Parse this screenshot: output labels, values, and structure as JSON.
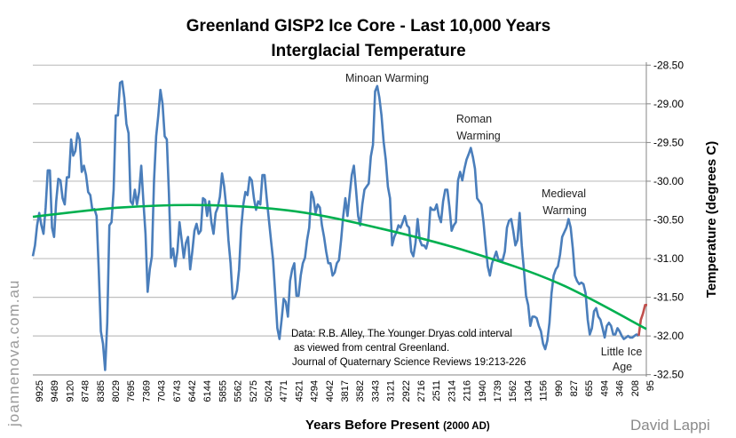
{
  "chart_data": {
    "type": "line",
    "title": [
      "Greenland GISP2 Ice Core - Last 10,000 Years",
      "Interglacial Temperature"
    ],
    "xlabel": "Years Before Present",
    "xlabel_suffix": "(2000 AD)",
    "ylabel": "Temperature (degrees C)",
    "ylim": [
      -32.5,
      -28.5
    ],
    "y_axis_side": "right",
    "y_ticks": [
      "-28.50",
      "-29.00",
      "-29.50",
      "-30.00",
      "-30.50",
      "-31.00",
      "-31.50",
      "-32.00",
      "-32.50"
    ],
    "x_tick_labels": [
      "9925",
      "9489",
      "9120",
      "8748",
      "8385",
      "8029",
      "7695",
      "7369",
      "7043",
      "6743",
      "6442",
      "6144",
      "5855",
      "5562",
      "5275",
      "5024",
      "4771",
      "4521",
      "4294",
      "4042",
      "3817",
      "3582",
      "3343",
      "3121",
      "2922",
      "2716",
      "2511",
      "2314",
      "2116",
      "1940",
      "1739",
      "1562",
      "1304",
      "1156",
      "990",
      "827",
      "655",
      "494",
      "346",
      "208",
      "95"
    ],
    "grid": "horizontal",
    "series": [
      {
        "color": "#4a7ebb",
        "values": [
          -30.97,
          -30.83,
          -30.57,
          -30.41,
          -30.57,
          -30.68,
          -30.34,
          -29.86,
          -29.86,
          -30.6,
          -30.72,
          -30.26,
          -29.97,
          -29.99,
          -30.22,
          -30.3,
          -29.95,
          -29.95,
          -29.46,
          -29.67,
          -29.61,
          -29.38,
          -29.46,
          -29.88,
          -29.8,
          -29.92,
          -30.14,
          -30.18,
          -30.37,
          -30.36,
          -30.45,
          -31.14,
          -31.94,
          -32.1,
          -32.44,
          -31.83,
          -30.57,
          -30.53,
          -30.11,
          -29.15,
          -29.15,
          -28.73,
          -28.71,
          -28.92,
          -29.26,
          -29.38,
          -30.26,
          -30.3,
          -30.11,
          -30.3,
          -30.14,
          -29.8,
          -30.26,
          -30.68,
          -31.43,
          -31.14,
          -30.97,
          -29.99,
          -29.42,
          -29.15,
          -28.82,
          -29.0,
          -29.42,
          -29.46,
          -30.14,
          -30.99,
          -30.87,
          -31.1,
          -30.91,
          -30.53,
          -30.76,
          -30.99,
          -30.8,
          -30.72,
          -31.14,
          -30.91,
          -30.64,
          -30.55,
          -30.68,
          -30.64,
          -30.22,
          -30.24,
          -30.45,
          -30.26,
          -30.53,
          -30.68,
          -30.41,
          -30.34,
          -30.2,
          -29.9,
          -30.07,
          -30.34,
          -30.76,
          -31.06,
          -31.52,
          -31.5,
          -31.41,
          -31.14,
          -30.6,
          -30.3,
          -30.14,
          -30.18,
          -29.95,
          -29.99,
          -30.22,
          -30.37,
          -30.26,
          -30.3,
          -29.92,
          -29.92,
          -30.22,
          -30.49,
          -30.76,
          -31.02,
          -31.45,
          -31.9,
          -32.04,
          -31.79,
          -31.52,
          -31.56,
          -31.75,
          -31.29,
          -31.14,
          -31.06,
          -31.48,
          -31.48,
          -31.22,
          -31.06,
          -30.99,
          -30.76,
          -30.6,
          -30.14,
          -30.22,
          -30.41,
          -30.3,
          -30.34,
          -30.57,
          -30.72,
          -30.91,
          -31.06,
          -31.06,
          -31.22,
          -31.18,
          -31.06,
          -31.02,
          -30.76,
          -30.45,
          -30.22,
          -30.45,
          -30.18,
          -29.92,
          -29.8,
          -30.11,
          -30.45,
          -30.57,
          -30.3,
          -30.11,
          -30.07,
          -30.03,
          -29.68,
          -29.53,
          -28.84,
          -28.77,
          -28.92,
          -29.15,
          -29.49,
          -29.72,
          -30.07,
          -30.22,
          -30.83,
          -30.72,
          -30.66,
          -30.57,
          -30.6,
          -30.53,
          -30.45,
          -30.57,
          -30.6,
          -30.91,
          -30.97,
          -30.8,
          -30.49,
          -30.76,
          -30.83,
          -30.83,
          -30.87,
          -30.76,
          -30.34,
          -30.37,
          -30.37,
          -30.3,
          -30.45,
          -30.53,
          -30.26,
          -30.11,
          -30.11,
          -30.34,
          -30.64,
          -30.57,
          -30.53,
          -29.99,
          -29.88,
          -29.99,
          -29.84,
          -29.72,
          -29.65,
          -29.57,
          -29.69,
          -29.84,
          -30.22,
          -30.26,
          -30.3,
          -30.53,
          -30.83,
          -31.1,
          -31.22,
          -31.06,
          -30.99,
          -30.91,
          -31.02,
          -31.02,
          -31.02,
          -30.91,
          -30.6,
          -30.51,
          -30.49,
          -30.64,
          -30.83,
          -30.76,
          -30.41,
          -30.83,
          -31.14,
          -31.48,
          -31.6,
          -31.87,
          -31.75,
          -31.75,
          -31.77,
          -31.87,
          -31.94,
          -32.1,
          -32.17,
          -32.06,
          -31.83,
          -31.45,
          -31.22,
          -31.14,
          -31.1,
          -30.95,
          -30.72,
          -30.66,
          -30.6,
          -30.49,
          -30.6,
          -30.87,
          -31.22,
          -31.29,
          -31.33,
          -31.31,
          -31.33,
          -31.45,
          -31.79,
          -31.98,
          -31.9,
          -31.68,
          -31.64,
          -31.75,
          -31.79,
          -31.9,
          -32.02,
          -31.87,
          -31.83,
          -31.87,
          -31.98,
          -31.98,
          -31.9,
          -31.94,
          -32.0,
          -32.04,
          -32.02,
          -32.0,
          -32.02,
          -32.02,
          -32.0,
          -31.98,
          -32.0
        ]
      },
      {
        "color": "#c0504d",
        "values": [
          -32.0,
          -31.79,
          -31.71,
          -31.6,
          -31.6
        ]
      },
      {
        "type": "trend",
        "color": "#00b050",
        "values": [
          -30.46,
          -30.34,
          -30.31,
          -30.39,
          -30.62,
          -30.92,
          -31.32,
          -31.91
        ]
      }
    ],
    "annotations": {
      "minoan": "Minoan Warming",
      "roman": [
        "Roman",
        "Warming"
      ],
      "medieval": [
        "Medieval",
        "Warming"
      ],
      "little_ice_age": [
        "Little Ice",
        "Age"
      ],
      "source_note": [
        "Data: R.B. Alley,  The Younger Dryas cold interval",
        "as viewed from central Greenland.",
        "Journal of Quaternary  Science Reviews 19:213-226"
      ]
    }
  },
  "watermarks": {
    "site": "joannenova.com.au",
    "author": "David Lappi"
  }
}
